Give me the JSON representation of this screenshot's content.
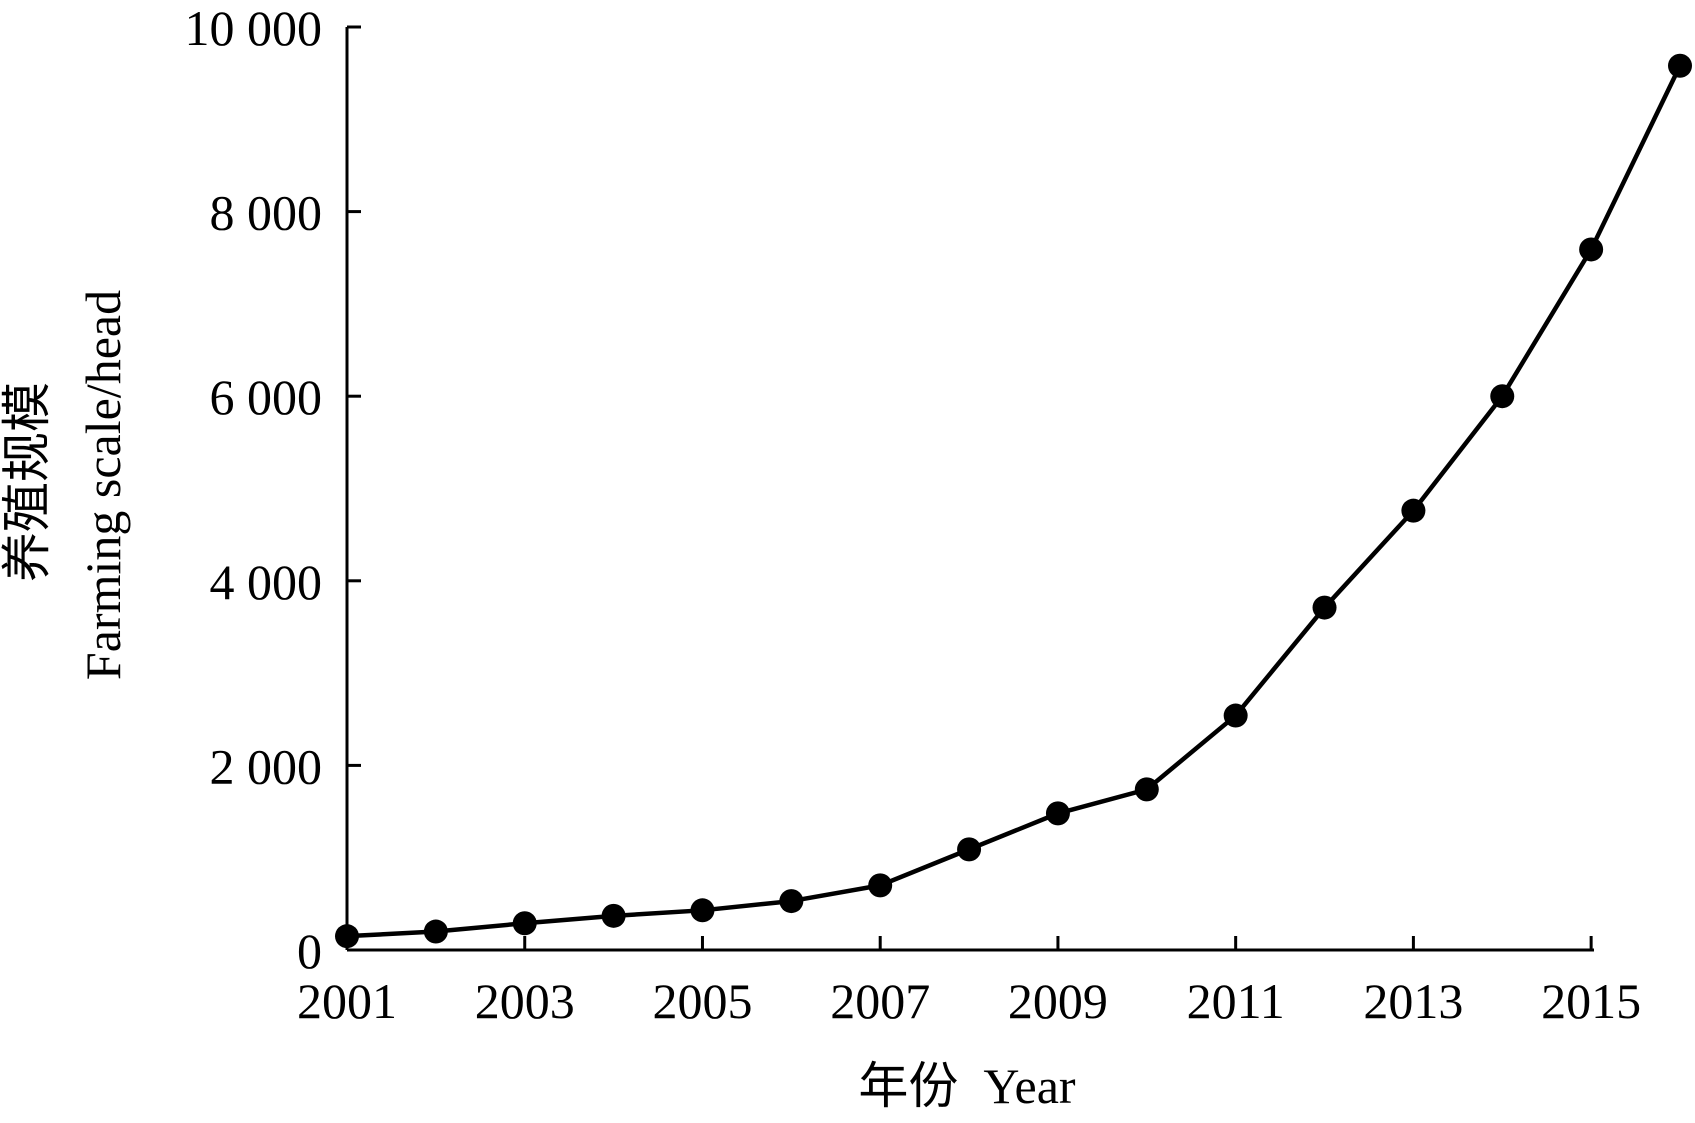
{
  "chart_data": {
    "type": "line",
    "title": "",
    "xlabel": "年份  Year",
    "ylabel_cn": "养殖规模",
    "ylabel_en": "Farming scale/head",
    "x": [
      2001,
      2002,
      2003,
      2004,
      2005,
      2006,
      2007,
      2008,
      2009,
      2010,
      2011,
      2012,
      2013,
      2014,
      2015,
      2016
    ],
    "series": [
      {
        "values": [
          150,
          200,
          290,
          370,
          430,
          530,
          700,
          1090,
          1480,
          1740,
          2540,
          3710,
          4760,
          6000,
          7590,
          9580
        ]
      }
    ],
    "xlim": [
      2001,
      2016
    ],
    "ylim": [
      0,
      10000
    ],
    "x_ticks": [
      2001,
      2003,
      2005,
      2007,
      2009,
      2011,
      2013,
      2015
    ],
    "x_tick_labels": [
      "2001",
      "2003",
      "2005",
      "2007",
      "2009",
      "2011",
      "2013",
      "2015"
    ],
    "y_ticks": [
      0,
      2000,
      4000,
      6000,
      8000,
      10000
    ],
    "y_tick_labels": [
      "0",
      "2 000",
      "4 000",
      "6 000",
      "8 000",
      "10 000"
    ],
    "grid": false,
    "legend": "none",
    "line_color": "#000000",
    "marker_color": "#000000"
  }
}
